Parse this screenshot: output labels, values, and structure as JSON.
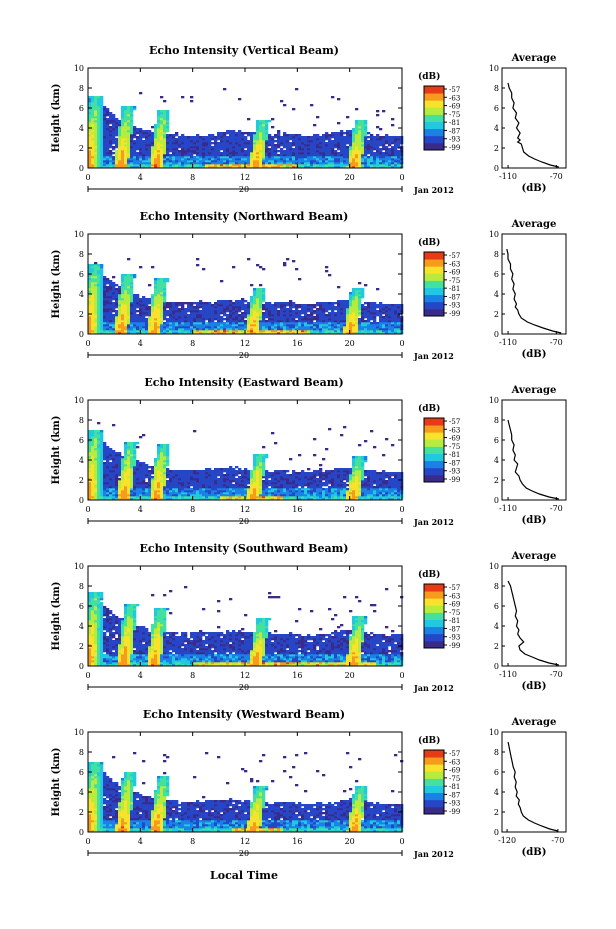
{
  "x_axis_label": "Local Time",
  "date_label": "Jan 2012",
  "day_label": "20",
  "colorbar_unit": "(dB)",
  "colorbar_ticks": [
    "-57",
    "-63",
    "-69",
    "-75",
    "-81",
    "-87",
    "-93",
    "-99"
  ],
  "avg_title": "Average",
  "avg_xlabel": "(dB)",
  "colors": {
    "colormap": [
      "#3a2a8a",
      "#2646c8",
      "#1a82e6",
      "#20c8e0",
      "#44e0a0",
      "#b8ec3c",
      "#f8e22c",
      "#f89a1c",
      "#e63a18"
    ]
  },
  "chart_data": [
    {
      "type": "heatmap",
      "title": "Echo Intensity (Vertical Beam)",
      "ylabel": "Height (km)",
      "xlim": [
        0,
        24
      ],
      "ylim": [
        0,
        10
      ],
      "xticks": [
        "0",
        "4",
        "8",
        "12",
        "16",
        "20",
        "0"
      ],
      "yticks": [
        "0",
        "2",
        "4",
        "6",
        "8",
        "10"
      ],
      "colorbar": {
        "range": [
          -99,
          -57
        ]
      },
      "cloud_top_km": [
        7.2,
        6.5,
        5.2,
        4.5,
        4.0,
        3.6,
        3.4,
        3.3,
        3.2,
        3.3,
        3.5,
        3.8,
        3.6,
        3.5,
        3.4,
        3.5,
        3.4,
        3.3,
        3.4,
        3.6,
        3.8,
        3.6,
        3.4,
        3.3,
        3.2
      ],
      "fall_streaks": [
        {
          "t": 0.0,
          "top": 7.2
        },
        {
          "t": 2.5,
          "top": 6.2
        },
        {
          "t": 5.2,
          "top": 5.8
        },
        {
          "t": 12.8,
          "top": 4.8
        },
        {
          "t": 20.3,
          "top": 4.8
        }
      ],
      "strong_near_surface": [
        {
          "t0": 9,
          "t1": 16
        }
      ],
      "average_profile": {
        "xticks": [
          "-110",
          "-70"
        ],
        "xlim": [
          -115,
          -62
        ],
        "yticks": [
          "0",
          "2",
          "4",
          "6",
          "8",
          "10"
        ],
        "height_km": [
          0.1,
          0.3,
          0.6,
          0.9,
          1.2,
          1.6,
          2.0,
          2.4,
          2.6,
          2.8,
          3.0,
          3.5,
          4.0,
          4.5,
          5.0,
          5.5,
          6.0,
          6.5,
          7.0,
          7.5,
          8.0,
          8.5
        ],
        "db": [
          -68,
          -75,
          -82,
          -88,
          -93,
          -97,
          -98,
          -99,
          -102,
          -100,
          -102,
          -100,
          -103,
          -101,
          -104,
          -103,
          -106,
          -105,
          -107,
          -107,
          -109,
          -110
        ]
      }
    },
    {
      "type": "heatmap",
      "title": "Echo Intensity (Northward Beam)",
      "ylabel": "Height (km)",
      "xlim": [
        0,
        24
      ],
      "ylim": [
        0,
        10
      ],
      "xticks": [
        "0",
        "4",
        "8",
        "12",
        "16",
        "20",
        "0"
      ],
      "yticks": [
        "0",
        "2",
        "4",
        "6",
        "8",
        "10"
      ],
      "colorbar": {
        "range": [
          -99,
          -57
        ]
      },
      "cloud_top_km": [
        7.0,
        6.2,
        5.0,
        4.4,
        3.8,
        3.4,
        3.3,
        3.2,
        3.2,
        3.3,
        3.3,
        3.4,
        3.3,
        3.2,
        3.1,
        3.2,
        3.1,
        3.0,
        3.1,
        3.3,
        3.4,
        3.3,
        3.1,
        3.0,
        3.0
      ],
      "fall_streaks": [
        {
          "t": 0.0,
          "top": 7.0
        },
        {
          "t": 2.5,
          "top": 6.0
        },
        {
          "t": 5.0,
          "top": 5.5
        },
        {
          "t": 12.5,
          "top": 4.5
        },
        {
          "t": 20.0,
          "top": 4.5
        }
      ],
      "strong_near_surface": [
        {
          "t0": 8,
          "t1": 17
        }
      ],
      "average_profile": {
        "xticks": [
          "-110",
          "-70"
        ],
        "xlim": [
          -115,
          -62
        ],
        "yticks": [
          "0",
          "2",
          "4",
          "6",
          "8",
          "10"
        ],
        "height_km": [
          0.1,
          0.3,
          0.6,
          0.9,
          1.2,
          1.6,
          2.0,
          2.4,
          2.7,
          3.0,
          3.5,
          4.0,
          4.5,
          5.0,
          5.5,
          6.0,
          6.5,
          7.0,
          7.5,
          8.0,
          8.5
        ],
        "db": [
          -66,
          -73,
          -81,
          -88,
          -94,
          -99,
          -101,
          -102,
          -104,
          -103,
          -105,
          -104,
          -106,
          -105,
          -107,
          -106,
          -108,
          -108,
          -110,
          -110,
          -111
        ]
      }
    },
    {
      "type": "heatmap",
      "title": "Echo Intensity (Eastward Beam)",
      "ylabel": "Height (km)",
      "xlim": [
        0,
        24
      ],
      "ylim": [
        0,
        10
      ],
      "xticks": [
        "0",
        "4",
        "8",
        "12",
        "16",
        "20",
        "0"
      ],
      "yticks": [
        "0",
        "2",
        "4",
        "6",
        "8",
        "10"
      ],
      "colorbar": {
        "range": [
          -99,
          -57
        ]
      },
      "cloud_top_km": [
        7.0,
        6.0,
        5.0,
        4.2,
        3.8,
        3.4,
        3.2,
        3.0,
        3.0,
        3.1,
        3.2,
        3.3,
        3.2,
        3.0,
        2.9,
        3.0,
        2.9,
        2.8,
        2.9,
        3.1,
        3.3,
        3.1,
        2.9,
        2.8,
        2.8
      ],
      "fall_streaks": [
        {
          "t": 0.0,
          "top": 7.0
        },
        {
          "t": 2.7,
          "top": 5.8
        },
        {
          "t": 5.2,
          "top": 5.5
        },
        {
          "t": 12.6,
          "top": 4.6
        },
        {
          "t": 20.2,
          "top": 4.4
        }
      ],
      "strong_near_surface": [
        {
          "t0": 10,
          "t1": 15
        }
      ],
      "average_profile": {
        "xticks": [
          "-110",
          "-70"
        ],
        "xlim": [
          -115,
          -62
        ],
        "yticks": [
          "0",
          "2",
          "4",
          "6",
          "8",
          "10"
        ],
        "height_km": [
          0.1,
          0.3,
          0.6,
          0.9,
          1.2,
          1.6,
          2.0,
          2.4,
          2.8,
          3.2,
          3.6,
          4.0,
          4.5,
          5.0,
          5.5,
          6.0,
          6.5,
          7.0,
          7.5,
          8.0
        ],
        "db": [
          -68,
          -76,
          -84,
          -90,
          -95,
          -98,
          -100,
          -101,
          -104,
          -103,
          -102,
          -105,
          -104,
          -106,
          -105,
          -107,
          -107,
          -108,
          -109,
          -110
        ]
      }
    },
    {
      "type": "heatmap",
      "title": "Echo Intensity (Southward Beam)",
      "ylabel": "Height (km)",
      "xlim": [
        0,
        24
      ],
      "ylim": [
        0,
        10
      ],
      "xticks": [
        "0",
        "4",
        "8",
        "12",
        "16",
        "20",
        "0"
      ],
      "yticks": [
        "0",
        "2",
        "4",
        "6",
        "8",
        "10"
      ],
      "colorbar": {
        "range": [
          -99,
          -57
        ]
      },
      "cloud_top_km": [
        7.4,
        6.4,
        5.2,
        4.5,
        4.0,
        3.6,
        3.4,
        3.3,
        3.3,
        3.4,
        3.4,
        3.5,
        3.4,
        3.3,
        3.2,
        3.3,
        3.2,
        3.1,
        3.2,
        3.4,
        3.8,
        3.5,
        3.3,
        3.2,
        3.2
      ],
      "fall_streaks": [
        {
          "t": 0.0,
          "top": 7.4
        },
        {
          "t": 2.7,
          "top": 6.2
        },
        {
          "t": 5.0,
          "top": 5.8
        },
        {
          "t": 12.8,
          "top": 4.8
        },
        {
          "t": 20.2,
          "top": 5.0
        }
      ],
      "strong_near_surface": [
        {
          "t0": 8,
          "t1": 22
        }
      ],
      "average_profile": {
        "xticks": [
          "-110",
          "-70"
        ],
        "xlim": [
          -115,
          -62
        ],
        "yticks": [
          "0",
          "2",
          "4",
          "6",
          "8",
          "10"
        ],
        "height_km": [
          0.1,
          0.3,
          0.6,
          0.9,
          1.2,
          1.6,
          2.0,
          2.4,
          2.8,
          3.2,
          3.6,
          4.0,
          4.5,
          5.0,
          5.5,
          6.0,
          6.5,
          7.0,
          7.5,
          8.0,
          8.5
        ],
        "db": [
          -68,
          -76,
          -84,
          -90,
          -96,
          -100,
          -101,
          -97,
          -100,
          -102,
          -101,
          -103,
          -102,
          -104,
          -103,
          -104,
          -105,
          -106,
          -107,
          -108,
          -110
        ]
      }
    },
    {
      "type": "heatmap",
      "title": "Echo Intensity (Westward Beam)",
      "ylabel": "Height (km)",
      "xlim": [
        0,
        24
      ],
      "ylim": [
        0,
        10
      ],
      "xticks": [
        "0",
        "4",
        "8",
        "12",
        "16",
        "20",
        "0"
      ],
      "yticks": [
        "0",
        "2",
        "4",
        "6",
        "8",
        "10"
      ],
      "colorbar": {
        "range": [
          -99,
          -57
        ]
      },
      "cloud_top_km": [
        7.0,
        6.2,
        5.0,
        4.2,
        3.8,
        3.4,
        3.2,
        3.0,
        3.0,
        3.1,
        3.2,
        3.3,
        3.1,
        3.0,
        2.9,
        3.0,
        2.9,
        2.8,
        2.9,
        3.1,
        3.3,
        3.1,
        2.9,
        2.8,
        2.8
      ],
      "fall_streaks": [
        {
          "t": 0.0,
          "top": 7.0
        },
        {
          "t": 2.6,
          "top": 6.0
        },
        {
          "t": 5.2,
          "top": 5.6
        },
        {
          "t": 12.6,
          "top": 4.6
        },
        {
          "t": 20.3,
          "top": 4.6
        }
      ],
      "strong_near_surface": [
        {
          "t0": 11,
          "t1": 15
        }
      ],
      "average_profile": {
        "xticks": [
          "-120",
          "-70"
        ],
        "xlim": [
          -125,
          -62
        ],
        "yticks": [
          "0",
          "2",
          "4",
          "6",
          "8",
          "10"
        ],
        "height_km": [
          0.1,
          0.3,
          0.6,
          0.9,
          1.2,
          1.6,
          2.0,
          2.4,
          2.8,
          3.2,
          3.6,
          4.0,
          4.5,
          5.0,
          5.5,
          6.0,
          6.5,
          7.0,
          7.5,
          8.0,
          8.5,
          9.0
        ],
        "db": [
          -70,
          -78,
          -86,
          -93,
          -99,
          -104,
          -106,
          -107,
          -109,
          -108,
          -111,
          -110,
          -112,
          -111,
          -113,
          -112,
          -114,
          -115,
          -116,
          -117,
          -118,
          -119
        ]
      }
    }
  ]
}
